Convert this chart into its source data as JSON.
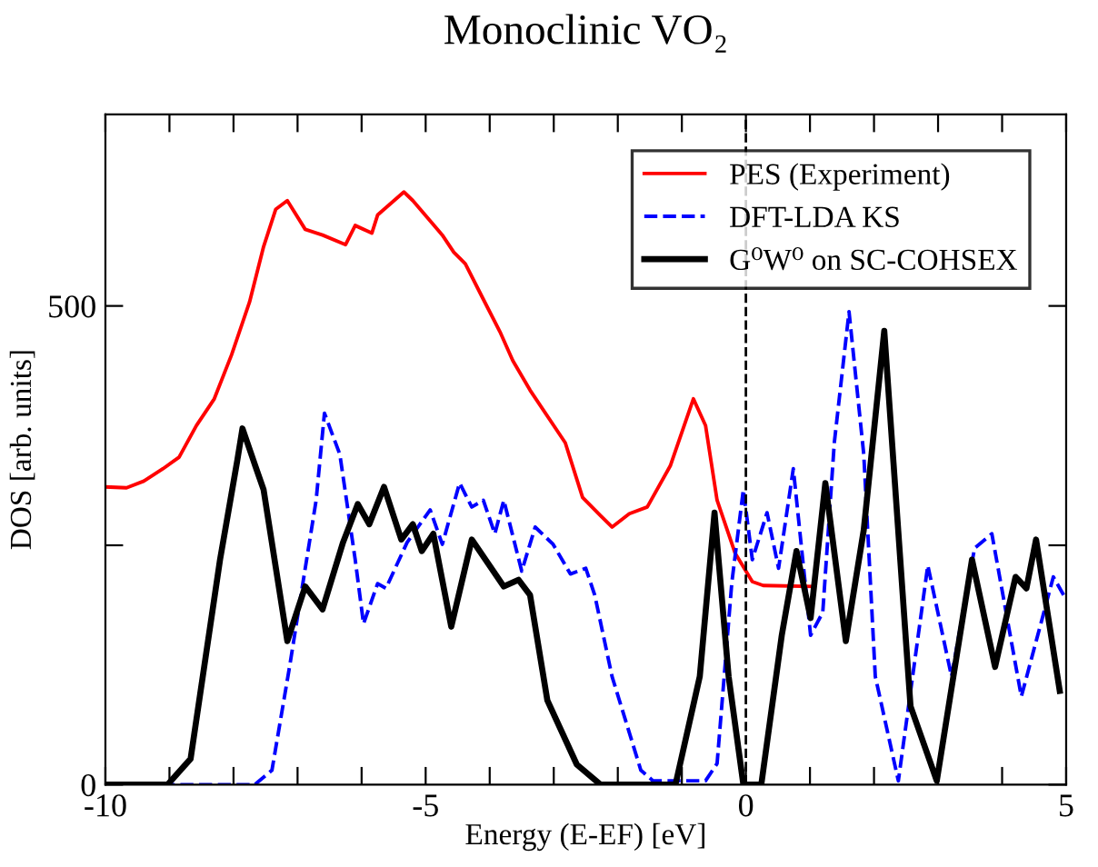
{
  "chart_data": {
    "type": "line",
    "title": "Monoclinic VO₂",
    "xlabel": "Energy (E-EF) [eV]",
    "ylabel": "DOS [arb. units]",
    "xlim": [
      -10,
      5
    ],
    "ylim": [
      0,
      700
    ],
    "xticks": [
      -10,
      {
        "value": -9,
        "label": null
      },
      {
        "value": -8,
        "label": null
      },
      {
        "value": -7,
        "label": null
      },
      {
        "value": -6,
        "label": null
      },
      -5,
      {
        "value": -4,
        "label": null
      },
      {
        "value": -3,
        "label": null
      },
      {
        "value": -2,
        "label": null
      },
      {
        "value": -1,
        "label": null
      },
      0,
      {
        "value": 1,
        "label": null
      },
      {
        "value": 2,
        "label": null
      },
      {
        "value": 3,
        "label": null
      },
      {
        "value": 4,
        "label": null
      },
      5
    ],
    "yticks": [
      0,
      {
        "value": 250,
        "label": null
      },
      500
    ],
    "grid": false,
    "legend": "top right",
    "ref_lines": [
      {
        "axis": "x",
        "value": 0,
        "color": "#000000",
        "line_style": "dashed"
      }
    ],
    "series": [
      {
        "name": "PES (Experiment)",
        "color": "#ff0000",
        "line_style": "solid",
        "x": [
          -10,
          -9.67,
          -9.4,
          -9.1,
          -8.85,
          -8.58,
          -8.3,
          -8.03,
          -7.75,
          -7.53,
          -7.34,
          -7.16,
          -6.88,
          -6.61,
          -6.25,
          -6.1,
          -5.84,
          -5.75,
          -5.34,
          -5.2,
          -4.74,
          -4.56,
          -4.38,
          -4.1,
          -3.84,
          -3.64,
          -3.37,
          -2.82,
          -2.55,
          -2.27,
          -2.09,
          -1.82,
          -1.54,
          -1.18,
          -0.82,
          -0.63,
          -0.45,
          -0.17,
          0.1,
          0.27,
          1.06
        ],
        "values": [
          311,
          310,
          317,
          330,
          342,
          375,
          403,
          449,
          504,
          562,
          601,
          610,
          580,
          574,
          564,
          584,
          576,
          595,
          619,
          610,
          574,
          556,
          544,
          507,
          473,
          443,
          412,
          357,
          300,
          281,
          269,
          283,
          290,
          333,
          403,
          375,
          297,
          242,
          212,
          208,
          207
        ]
      },
      {
        "name": "DFT-LDA KS",
        "color": "#0000ff",
        "line_style": "dashed",
        "x": [
          -10,
          -7.67,
          -7.4,
          -7.12,
          -6.93,
          -6.71,
          -6.58,
          -6.34,
          -6.1,
          -5.97,
          -5.75,
          -5.62,
          -5.29,
          -4.93,
          -4.74,
          -4.47,
          -4.28,
          -4.1,
          -3.92,
          -3.78,
          -3.5,
          -3.29,
          -3.01,
          -2.74,
          -2.5,
          -2.36,
          -2.09,
          -1.64,
          -1.45,
          -0.63,
          -0.45,
          -0.22,
          -0.04,
          0.1,
          0.33,
          0.51,
          0.74,
          1.01,
          1.2,
          1.38,
          1.61,
          1.84,
          2.02,
          2.38,
          2.84,
          3.21,
          3.57,
          3.84,
          4.3,
          4.8,
          4.96
        ],
        "values": [
          0,
          0,
          15,
          125,
          205,
          297,
          388,
          345,
          235,
          168,
          210,
          205,
          253,
          287,
          251,
          315,
          290,
          297,
          262,
          297,
          223,
          269,
          251,
          220,
          226,
          198,
          113,
          15,
          4,
          4,
          22,
          211,
          308,
          235,
          284,
          226,
          330,
          156,
          180,
          357,
          494,
          345,
          113,
          4,
          229,
          113,
          247,
          262,
          92,
          217,
          198
        ]
      },
      {
        "name": "G⁰W⁰ on SC-COHSEX",
        "color": "#000000",
        "line_style": "solid",
        "x": [
          -10,
          -9.03,
          -8.67,
          -8.21,
          -7.94,
          -7.86,
          -7.66,
          -7.53,
          -7.16,
          -6.88,
          -6.61,
          -6.29,
          -6.06,
          -5.88,
          -5.65,
          -5.38,
          -5.2,
          -5.06,
          -4.88,
          -4.6,
          -4.28,
          -3.78,
          -3.55,
          -3.37,
          -3.1,
          -2.64,
          -2.27,
          -1.1,
          -0.72,
          -0.49,
          -0.27,
          -0.04,
          0.24,
          0.56,
          0.79,
          1.01,
          1.24,
          1.56,
          1.84,
          2.16,
          2.57,
          2.98,
          3.53,
          3.89,
          4.21,
          4.38,
          4.53,
          4.9
        ],
        "values": [
          0,
          0,
          27,
          235,
          339,
          372,
          333,
          308,
          150,
          207,
          183,
          253,
          293,
          272,
          311,
          256,
          272,
          244,
          262,
          165,
          256,
          207,
          214,
          198,
          88,
          21,
          0,
          0,
          113,
          284,
          113,
          0,
          0,
          156,
          244,
          174,
          315,
          150,
          266,
          474,
          82,
          4,
          235,
          123,
          217,
          205,
          256,
          98
        ]
      }
    ]
  }
}
